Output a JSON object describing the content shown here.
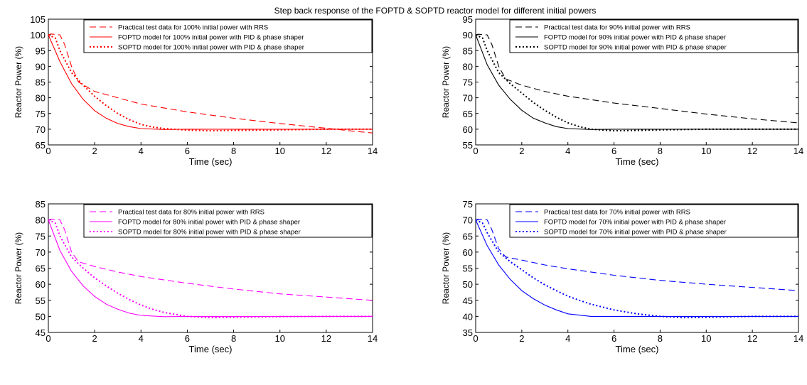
{
  "figure_title": "Step back response of the FOPTD & SOPTD reactor model for different initial powers",
  "chart_data": [
    {
      "type": "line",
      "xlabel": "Time (sec)",
      "ylabel": "Reactor Power (%)",
      "xlim": [
        0,
        14
      ],
      "ylim": [
        65,
        105
      ],
      "xticks": [
        0,
        2,
        4,
        6,
        8,
        10,
        12,
        14
      ],
      "yticks": [
        65,
        70,
        75,
        80,
        85,
        90,
        95,
        100,
        105
      ],
      "legend_position": "top-right",
      "color": "#ff0000",
      "series": [
        {
          "name": "Practical test data for 100% initial power with RRS",
          "style": "dashed",
          "x": [
            0,
            0.1,
            0.5,
            0.7,
            1.0,
            1.3,
            2.0,
            3.0,
            4.0,
            6.0,
            8.0,
            10.0,
            12.0,
            13.0,
            14.0
          ],
          "y": [
            100,
            100.3,
            100,
            97,
            90,
            85,
            82,
            80,
            78,
            75.5,
            73.5,
            71.8,
            70.3,
            69.5,
            68.8
          ]
        },
        {
          "name": "FOPTD model for 100% initial power with PID & phase shaper",
          "style": "solid",
          "x": [
            0,
            0.5,
            1.0,
            1.5,
            2.0,
            2.5,
            3.0,
            3.5,
            4.0,
            5.0,
            6.0,
            8.0,
            10.0,
            12.0,
            14.0
          ],
          "y": [
            100,
            91.5,
            84.5,
            79.5,
            75.9,
            73.5,
            71.8,
            70.8,
            70.2,
            69.9,
            70.0,
            70.0,
            70.0,
            70.0,
            70.0
          ]
        },
        {
          "name": "SOPTD model for 100% initial power with PID & phase shaper",
          "style": "dotted",
          "x": [
            0,
            0.3,
            0.5,
            1.0,
            1.5,
            2.0,
            2.5,
            3.0,
            3.5,
            4.0,
            4.5,
            5.0,
            6.0,
            7.0,
            8.0,
            10.0,
            12.0,
            14.0
          ],
          "y": [
            100,
            99,
            95,
            88,
            84,
            80.5,
            77.5,
            75,
            73,
            71.5,
            70.7,
            70.2,
            69.7,
            69.5,
            69.6,
            69.8,
            70.0,
            70.0
          ]
        }
      ]
    },
    {
      "type": "line",
      "xlabel": "Time (sec)",
      "ylabel": "Reactor Power (%)",
      "xlim": [
        0,
        14
      ],
      "ylim": [
        55,
        95
      ],
      "xticks": [
        0,
        2,
        4,
        6,
        8,
        10,
        12,
        14
      ],
      "yticks": [
        55,
        60,
        65,
        70,
        75,
        80,
        85,
        90,
        95
      ],
      "legend_position": "top-right",
      "color": "#000000",
      "series": [
        {
          "name": "Practical test data for 90% initial power with RRS",
          "style": "dashed",
          "x": [
            0,
            0.1,
            0.5,
            0.7,
            1.0,
            1.3,
            2.0,
            3.0,
            4.0,
            6.0,
            8.0,
            10.0,
            12.0,
            14.0
          ],
          "y": [
            90,
            90.2,
            90,
            87,
            80,
            76,
            74,
            72,
            70.5,
            68.3,
            66.6,
            64.8,
            63.3,
            62
          ]
        },
        {
          "name": "FOPTD model for 90% initial power with PID & phase shaper",
          "style": "solid",
          "x": [
            0,
            0.5,
            1.0,
            1.5,
            2.0,
            2.5,
            3.0,
            3.5,
            4.0,
            5.0,
            6.0,
            8.0,
            10.0,
            12.0,
            14.0
          ],
          "y": [
            90,
            80.5,
            74,
            69.5,
            66,
            63.5,
            62,
            60.8,
            60.2,
            59.9,
            60,
            60,
            60,
            60,
            60
          ]
        },
        {
          "name": "SOPTD model for 90% initial power with PID & phase shaper",
          "style": "dotted",
          "x": [
            0,
            0.3,
            0.5,
            1.0,
            1.5,
            2.0,
            2.5,
            3.0,
            3.5,
            4.0,
            4.5,
            5.0,
            6.0,
            7.0,
            8.0,
            10.0,
            12.0,
            14.0
          ],
          "y": [
            90,
            89,
            85,
            78,
            74.5,
            71.5,
            68.5,
            66,
            63.8,
            62,
            60.8,
            60,
            59.5,
            59.6,
            59.8,
            60,
            60,
            60
          ]
        }
      ]
    },
    {
      "type": "line",
      "xlabel": "Time (sec)",
      "ylabel": "Reactor Power (%)",
      "xlim": [
        0,
        14
      ],
      "ylim": [
        45,
        85
      ],
      "xticks": [
        0,
        2,
        4,
        6,
        8,
        10,
        12,
        14
      ],
      "yticks": [
        45,
        50,
        55,
        60,
        65,
        70,
        75,
        80,
        85
      ],
      "legend_position": "top-right",
      "color": "#ff00ff",
      "series": [
        {
          "name": "Practical test data for 80% initial power with RRS",
          "style": "dashed",
          "x": [
            0,
            0.1,
            0.5,
            0.7,
            1.0,
            1.3,
            2.0,
            3.0,
            4.0,
            6.0,
            8.0,
            10.0,
            12.0,
            14.0
          ],
          "y": [
            80,
            80.2,
            80,
            77,
            70,
            67,
            65.5,
            63.8,
            62.4,
            60.3,
            58.5,
            57,
            56,
            55
          ]
        },
        {
          "name": "FOPTD model for 80% initial power with PID & phase shaper",
          "style": "solid",
          "x": [
            0,
            0.5,
            1.0,
            1.5,
            2.0,
            2.5,
            3.0,
            3.5,
            4.0,
            5.0,
            6.0,
            8.0,
            10.0,
            12.0,
            14.0
          ],
          "y": [
            80,
            70.5,
            64,
            59.5,
            56.2,
            53.8,
            52.2,
            51,
            50.3,
            49.9,
            50,
            50,
            50,
            50,
            50
          ]
        },
        {
          "name": "SOPTD model for 80% initial power with PID & phase shaper",
          "style": "dotted",
          "x": [
            0,
            0.3,
            0.5,
            1.0,
            1.5,
            2.0,
            2.5,
            3.0,
            3.5,
            4.0,
            4.5,
            5.0,
            6.0,
            7.0,
            8.0,
            10.0,
            12.0,
            14.0
          ],
          "y": [
            80,
            79,
            75,
            68.5,
            65,
            62,
            59.5,
            57.2,
            55.2,
            53.5,
            52.2,
            51.2,
            50,
            49.6,
            49.7,
            49.9,
            50,
            50
          ]
        }
      ]
    },
    {
      "type": "line",
      "xlabel": "Time (sec)",
      "ylabel": "Reactor Power (%)",
      "xlim": [
        0,
        14
      ],
      "ylim": [
        35,
        75
      ],
      "xticks": [
        0,
        2,
        4,
        6,
        8,
        10,
        12,
        14
      ],
      "yticks": [
        35,
        40,
        45,
        50,
        55,
        60,
        65,
        70,
        75
      ],
      "legend_position": "top-right",
      "color": "#0000ff",
      "series": [
        {
          "name": "Practical test data for 70% initial power with RRS",
          "style": "dashed",
          "x": [
            0,
            0.1,
            0.5,
            0.7,
            1.0,
            1.3,
            2.0,
            3.0,
            4.0,
            6.0,
            8.0,
            10.0,
            12.0,
            14.0
          ],
          "y": [
            70,
            70.2,
            70,
            67,
            61,
            58.5,
            57.5,
            56,
            54.8,
            52.8,
            51.2,
            50,
            49,
            48
          ]
        },
        {
          "name": "FOPTD model for 70% initial power with PID & phase shaper",
          "style": "solid",
          "x": [
            0,
            0.5,
            1.0,
            1.5,
            2.0,
            2.5,
            3.0,
            3.5,
            4.0,
            5.0,
            6.0,
            8.0,
            10.0,
            12.0,
            14.0
          ],
          "y": [
            70,
            62,
            56,
            51.5,
            48,
            45.5,
            43.5,
            42,
            40.8,
            40,
            40,
            40,
            40,
            40,
            40
          ]
        },
        {
          "name": "SOPTD model for 70% initial power with PID & phase shaper",
          "style": "dotted",
          "x": [
            0,
            0.3,
            0.5,
            1.0,
            1.5,
            2.0,
            2.5,
            3.0,
            3.5,
            4.0,
            4.5,
            5.0,
            6.0,
            7.0,
            8.0,
            9.0,
            10.0,
            12.0,
            14.0
          ],
          "y": [
            70,
            69,
            66,
            60,
            57,
            54.5,
            52,
            49.8,
            48,
            46.3,
            45,
            43.8,
            42,
            40.8,
            40,
            39.6,
            39.7,
            40,
            40
          ]
        }
      ]
    }
  ]
}
